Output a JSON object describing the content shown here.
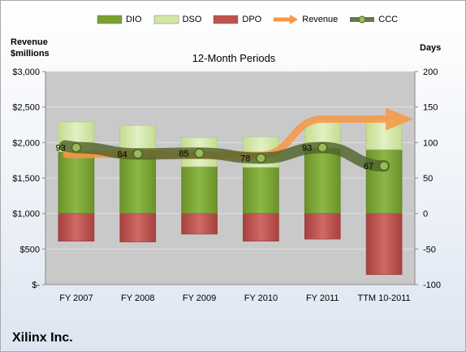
{
  "chart_data": {
    "type": "bar",
    "title": "12-Month Periods",
    "company": "Xilinx Inc.",
    "y_left_label": "Revenue $millions",
    "y_right_label": "Days",
    "y_left_ticks": [
      "$3,000",
      "$2,500",
      "$2,000",
      "$1,500",
      "$1,000",
      "$500",
      "$-"
    ],
    "y_right_ticks": [
      "200",
      "150",
      "100",
      "50",
      "0",
      "-50",
      "-100"
    ],
    "ylim_left": [
      0,
      3000
    ],
    "ylim_right": [
      -100,
      200
    ],
    "categories": [
      "FY 2007",
      "FY 2008",
      "FY 2009",
      "FY 2010",
      "FY 2011",
      "TTM 10-2011"
    ],
    "series": [
      {
        "name": "DIO",
        "type": "stacked-bar",
        "color": "#77a031",
        "values": [
          87,
          84,
          66,
          65,
          92,
          90
        ]
      },
      {
        "name": "DSO",
        "type": "stacked-bar",
        "color": "#d3e6a6",
        "values": [
          42,
          40,
          41,
          43,
          40,
          43
        ]
      },
      {
        "name": "DPO",
        "type": "stacked-bar",
        "color": "#c0504d",
        "values": [
          -39,
          -40,
          -29,
          -39,
          -36,
          -86
        ]
      },
      {
        "name": "Revenue",
        "type": "arrow-line",
        "color": "#f79646",
        "values": [
          1830,
          1840,
          1820,
          1820,
          2330,
          2330
        ]
      },
      {
        "name": "CCC",
        "type": "line",
        "color": "#4f6228",
        "values": [
          93,
          84,
          85,
          78,
          93,
          67
        ]
      }
    ],
    "ccc_labels": [
      "93",
      "84",
      "85",
      "78",
      "93",
      "67"
    ],
    "legend": "top"
  }
}
